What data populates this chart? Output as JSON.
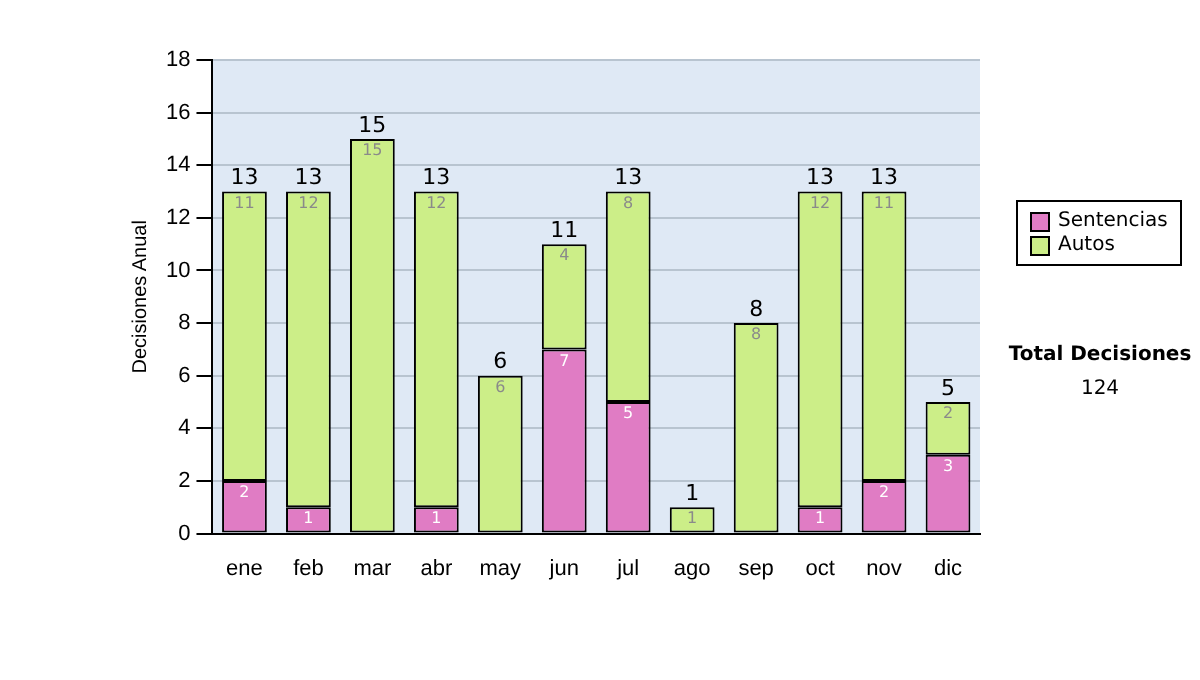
{
  "chart_data": {
    "type": "bar",
    "stacked": true,
    "ylabel": "Decisiones Anual",
    "categories": [
      "ene",
      "feb",
      "mar",
      "abr",
      "may",
      "jun",
      "jul",
      "ago",
      "sep",
      "oct",
      "nov",
      "dic"
    ],
    "series": [
      {
        "name": "Sentencias",
        "color": "#e07cc4",
        "values": [
          2,
          1,
          0,
          1,
          0,
          7,
          5,
          0,
          0,
          1,
          2,
          3
        ],
        "value_labels": [
          "2",
          "1",
          null,
          "1",
          null,
          "7",
          "5",
          null,
          null,
          "1",
          "2",
          "3"
        ]
      },
      {
        "name": "Autos",
        "color": "#ccee88",
        "values": [
          11,
          12,
          15,
          12,
          6,
          4,
          8,
          1,
          8,
          12,
          11,
          2
        ],
        "value_labels": [
          "11",
          "12",
          "15",
          "12",
          "6",
          "4",
          "8",
          "1",
          "8",
          "12",
          "11",
          "2"
        ]
      }
    ],
    "totals": [
      "13",
      "13",
      "15",
      "13",
      "6",
      "11",
      "13",
      "1",
      "8",
      "13",
      "13",
      "5"
    ],
    "ylim": [
      0,
      18
    ],
    "yticks": [
      0,
      2,
      4,
      6,
      8,
      10,
      12,
      14,
      16,
      18
    ],
    "grid": "y",
    "legend": "right",
    "annotations": [
      "Total Decisiones",
      "124"
    ]
  }
}
